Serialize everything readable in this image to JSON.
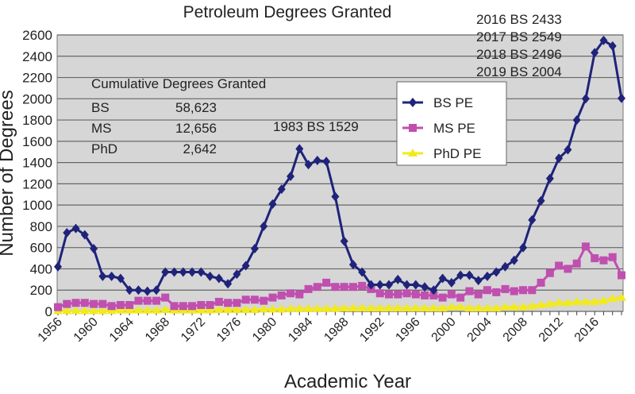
{
  "chart_data": {
    "type": "line",
    "title": "Petroleum Degrees Granted",
    "xlabel": "Academic Year",
    "ylabel": "Number of Degrees",
    "ylim": [
      0,
      2600
    ],
    "yticks": [
      0,
      200,
      400,
      600,
      800,
      1000,
      1200,
      1400,
      1600,
      1800,
      2000,
      2200,
      2400,
      2600
    ],
    "xticks": [
      "1956",
      "1960",
      "1964",
      "1968",
      "1972",
      "1976",
      "1980",
      "1984",
      "1988",
      "1992",
      "1996",
      "2000",
      "2004",
      "2008",
      "2012",
      "2016"
    ],
    "x_start": 1956,
    "x_end": 2019,
    "grid": true,
    "legend_position": "center-right",
    "series": [
      {
        "name": "BS PE",
        "color": "#1f237a",
        "marker": "diamond",
        "values": [
          420,
          740,
          780,
          720,
          590,
          330,
          330,
          310,
          200,
          200,
          190,
          200,
          370,
          370,
          370,
          370,
          370,
          330,
          310,
          260,
          350,
          430,
          590,
          800,
          1010,
          1150,
          1270,
          1529,
          1380,
          1420,
          1410,
          1080,
          660,
          440,
          370,
          250,
          250,
          250,
          300,
          250,
          250,
          230,
          200,
          310,
          270,
          340,
          340,
          290,
          330,
          370,
          420,
          480,
          600,
          860,
          1040,
          1250,
          1440,
          1520,
          1800,
          2000,
          2433,
          2549,
          2496,
          2004
        ]
      },
      {
        "name": "MS PE",
        "color": "#c04fb0",
        "marker": "square",
        "values": [
          40,
          70,
          80,
          80,
          70,
          70,
          50,
          60,
          60,
          100,
          100,
          100,
          130,
          50,
          50,
          50,
          60,
          60,
          90,
          80,
          80,
          110,
          110,
          100,
          130,
          150,
          170,
          160,
          210,
          230,
          270,
          230,
          230,
          230,
          240,
          210,
          170,
          160,
          160,
          170,
          160,
          150,
          150,
          130,
          160,
          130,
          190,
          160,
          200,
          180,
          210,
          190,
          200,
          200,
          270,
          360,
          430,
          400,
          450,
          610,
          500,
          480,
          510,
          340
        ]
      },
      {
        "name": "PhD PE",
        "color": "#f2ea1c",
        "marker": "triangle",
        "values": [
          5,
          5,
          5,
          5,
          5,
          5,
          5,
          10,
          10,
          10,
          10,
          10,
          15,
          10,
          10,
          10,
          10,
          10,
          15,
          15,
          15,
          15,
          15,
          20,
          20,
          20,
          25,
          25,
          25,
          25,
          25,
          25,
          30,
          30,
          30,
          30,
          30,
          30,
          30,
          30,
          30,
          30,
          30,
          30,
          40,
          40,
          30,
          30,
          30,
          30,
          40,
          40,
          40,
          50,
          60,
          70,
          80,
          80,
          90,
          90,
          90,
          100,
          120,
          130
        ]
      }
    ],
    "annotations": {
      "peak_1983": "1983 BS 1529",
      "recent": [
        "2016 BS 2433",
        "2017 BS 2549",
        "2018 BS 2496",
        "2019 BS 2004"
      ]
    },
    "cumulative": {
      "title": "Cumulative Degrees Granted",
      "rows": [
        {
          "label": "BS",
          "value": "58,623"
        },
        {
          "label": "MS",
          "value": "12,656"
        },
        {
          "label": "PhD",
          "value": "2,642"
        }
      ]
    }
  }
}
